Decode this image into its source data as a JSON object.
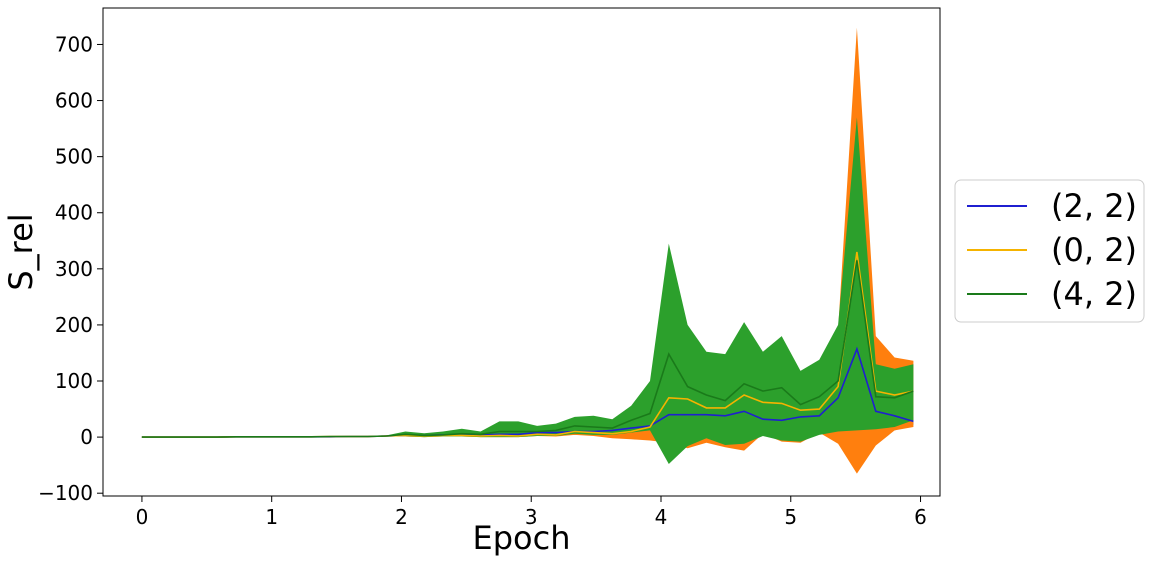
{
  "chart_data": {
    "type": "area",
    "xlabel": "Epoch",
    "ylabel": "S_rel",
    "xlim": [
      -0.3,
      6.15
    ],
    "ylim": [
      -105,
      765
    ],
    "xticks": [
      0,
      1,
      2,
      3,
      4,
      5,
      6
    ],
    "yticks": [
      -100,
      0,
      100,
      200,
      300,
      400,
      500,
      600,
      700
    ],
    "ytick_labels": [
      "−100",
      "0",
      "100",
      "200",
      "300",
      "400",
      "500",
      "600",
      "700"
    ],
    "grid": false,
    "legend_position": "right",
    "x": [
      0.0,
      0.145,
      0.29,
      0.435,
      0.58,
      0.725,
      0.87,
      1.015,
      1.16,
      1.305,
      1.45,
      1.595,
      1.74,
      1.885,
      2.03,
      2.175,
      2.32,
      2.465,
      2.61,
      2.755,
      2.9,
      3.045,
      3.19,
      3.335,
      3.48,
      3.625,
      3.77,
      3.915,
      4.06,
      4.205,
      4.35,
      4.495,
      4.64,
      4.785,
      4.93,
      5.075,
      5.22,
      5.365,
      5.51,
      5.655,
      5.8,
      5.945
    ],
    "series": [
      {
        "name": "(2, 2)",
        "color": "#1f1fd0",
        "band_color": "#1f77b4",
        "mean": [
          0,
          0,
          0,
          0,
          0,
          0.5,
          0.5,
          0.5,
          0.5,
          0.5,
          0.5,
          1,
          1,
          2,
          3,
          3,
          4,
          4,
          4,
          5,
          5,
          8,
          8,
          10,
          10,
          12,
          16,
          20,
          40,
          40,
          40,
          38,
          46,
          32,
          30,
          36,
          38,
          70,
          157,
          46,
          38,
          28
        ],
        "lower": [
          -1,
          -1,
          -1,
          -1,
          -1,
          -0.5,
          -0.5,
          -0.5,
          -0.5,
          -0.5,
          -0.5,
          0,
          0,
          1,
          1,
          1,
          2,
          2,
          2,
          2,
          2,
          3,
          3,
          4,
          4,
          4,
          6,
          8,
          10,
          12,
          14,
          12,
          12,
          10,
          10,
          12,
          12,
          14,
          14,
          10,
          12,
          22
        ],
        "upper": [
          1,
          1,
          1,
          1,
          1,
          1.5,
          1.5,
          1.5,
          1.5,
          1.5,
          1.5,
          2,
          2,
          3,
          5,
          5,
          6,
          6,
          6,
          8,
          8,
          12,
          14,
          16,
          16,
          20,
          26,
          30,
          60,
          62,
          64,
          62,
          72,
          56,
          52,
          62,
          66,
          110,
          220,
          72,
          64,
          36
        ]
      },
      {
        "name": "(0, 2)",
        "color": "#f5b300",
        "band_color": "#ff7f0e",
        "mean": [
          0,
          0,
          0,
          0,
          0,
          0.5,
          0.5,
          0.5,
          0.5,
          0.5,
          1,
          1,
          1,
          2,
          3,
          2,
          3,
          3,
          2,
          3,
          2,
          5,
          4,
          10,
          8,
          6,
          10,
          18,
          70,
          68,
          52,
          52,
          75,
          62,
          60,
          48,
          50,
          90,
          330,
          82,
          75,
          82
        ],
        "lower": [
          -1,
          -1,
          -1,
          -1,
          -1,
          -0.5,
          -0.5,
          -0.5,
          -0.5,
          -0.5,
          0,
          0,
          0,
          1,
          1,
          0,
          1,
          1,
          0,
          0,
          0,
          2,
          1,
          4,
          2,
          -2,
          -4,
          -6,
          -10,
          -20,
          -10,
          -18,
          -24,
          6,
          -8,
          -10,
          8,
          -12,
          -65,
          -15,
          12,
          18
        ],
        "upper": [
          1,
          1,
          1,
          1,
          1,
          1.5,
          1.5,
          1.5,
          1.5,
          1.5,
          2,
          2,
          2,
          3,
          5,
          4,
          5,
          5,
          4,
          6,
          4,
          8,
          7,
          16,
          14,
          14,
          24,
          42,
          150,
          156,
          114,
          122,
          174,
          118,
          128,
          106,
          92,
          192,
          730,
          180,
          142,
          136
        ]
      },
      {
        "name": "(4, 2)",
        "color": "#1a7a1a",
        "band_color": "#2ca02c",
        "mean": [
          0,
          0,
          0,
          0,
          0,
          0.5,
          0.5,
          0.5,
          0.5,
          0.5,
          1,
          1,
          1,
          2,
          5,
          3,
          4,
          6,
          5,
          10,
          10,
          10,
          12,
          20,
          18,
          16,
          30,
          42,
          148,
          90,
          75,
          65,
          95,
          82,
          88,
          58,
          72,
          100,
          315,
          72,
          70,
          82
        ],
        "lower": [
          -1,
          -1,
          -1,
          -1,
          -1,
          -0.5,
          -0.5,
          -0.5,
          -0.5,
          -0.5,
          0,
          0,
          0,
          1,
          1,
          0,
          1,
          1,
          0,
          0,
          0,
          2,
          2,
          6,
          4,
          4,
          8,
          12,
          -48,
          -16,
          -2,
          -14,
          -12,
          2,
          -6,
          -8,
          4,
          10,
          12,
          14,
          18,
          30
        ],
        "upper": [
          1,
          1,
          1,
          1,
          1,
          1.5,
          1.5,
          1.5,
          1.5,
          1.5,
          2,
          2,
          2,
          3,
          10,
          7,
          10,
          15,
          10,
          28,
          28,
          20,
          24,
          36,
          38,
          32,
          56,
          100,
          345,
          200,
          152,
          148,
          205,
          152,
          180,
          118,
          138,
          200,
          570,
          130,
          122,
          130
        ]
      }
    ]
  }
}
